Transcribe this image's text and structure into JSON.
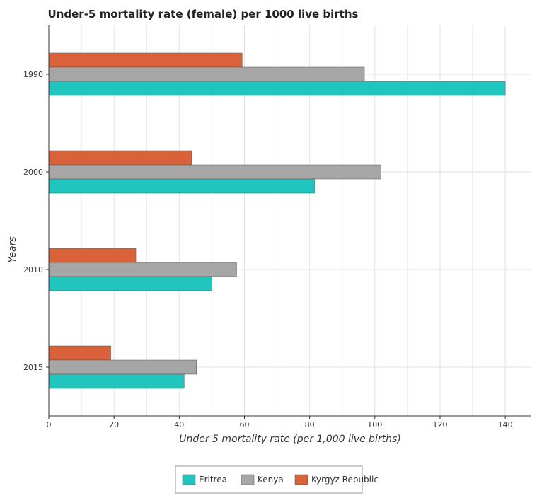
{
  "chart_data": {
    "type": "bar",
    "orientation": "horizontal",
    "title": "Under-5 mortality rate (female) per 1000 live births",
    "xlabel": "Under 5 mortality rate (per 1,000 live births)",
    "ylabel": "Years",
    "categories": [
      "1990",
      "2000",
      "2010",
      "2015"
    ],
    "series": [
      {
        "name": "Eritrea",
        "color": "#20c5bd",
        "values": [
          140.0,
          81.5,
          50.0,
          41.5
        ]
      },
      {
        "name": "Kenya",
        "color": "#a6a6a6",
        "values": [
          96.8,
          101.9,
          57.6,
          45.3
        ]
      },
      {
        "name": "Kyrgyz Republic",
        "color": "#d9623b",
        "values": [
          59.3,
          43.8,
          26.7,
          19.0
        ]
      }
    ],
    "xlim": [
      0,
      148
    ],
    "xticks": [
      0,
      20,
      40,
      60,
      80,
      100,
      120,
      140
    ],
    "grid": true,
    "legend": "bottom-center"
  }
}
